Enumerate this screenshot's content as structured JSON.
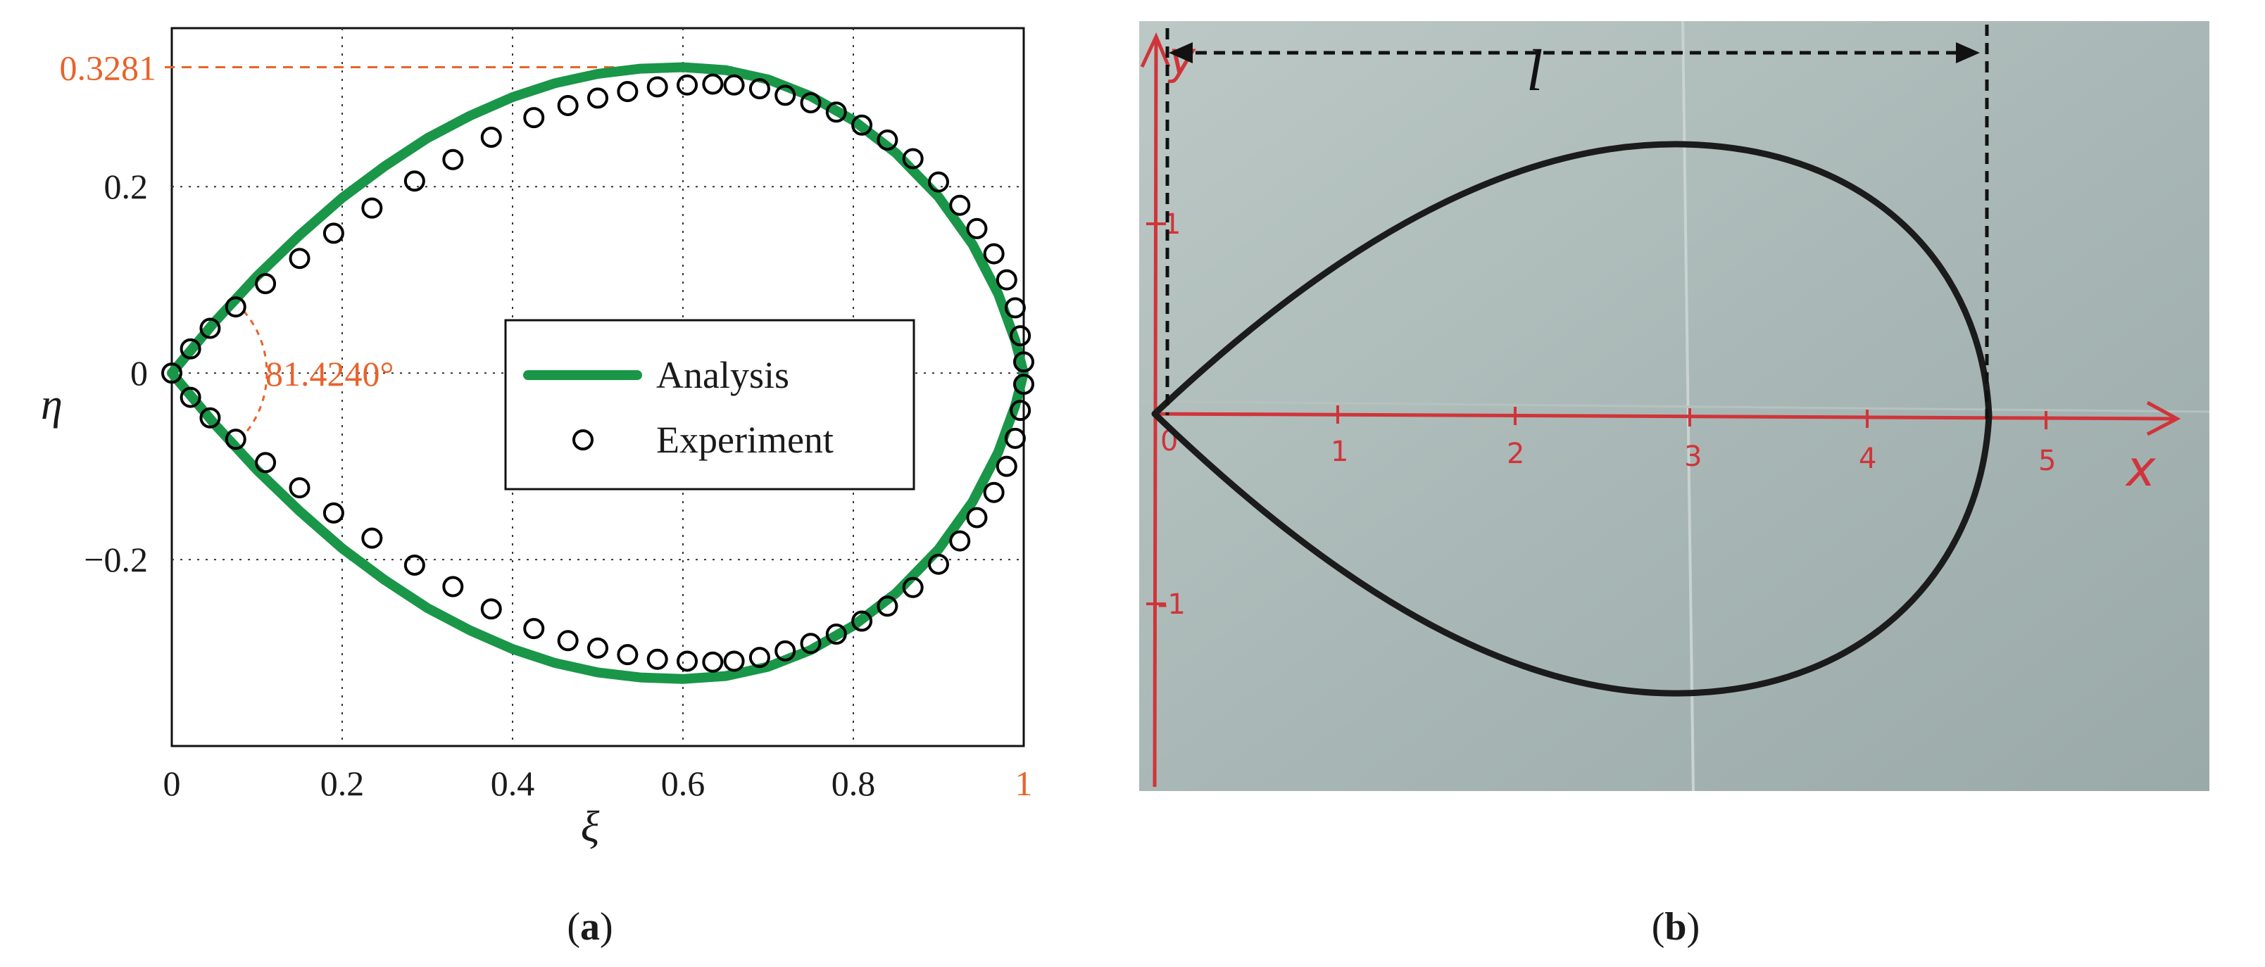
{
  "chart_data": [
    {
      "panel": "a",
      "type": "line",
      "xlabel": "ξ",
      "ylabel": "η",
      "xlim": [
        0,
        1
      ],
      "ylim": [
        -0.4,
        0.37
      ],
      "grid": true,
      "x_ticks": [
        "0",
        "0.2",
        "0.4",
        "0.6",
        "0.8",
        "1"
      ],
      "y_ticks": [
        {
          "v": 0.2,
          "label": "0.2"
        },
        {
          "v": 0,
          "label": "0"
        },
        {
          "v": -0.2,
          "label": "−0.2"
        }
      ],
      "peak_value": 0.3281,
      "peak_label": "0.3281",
      "angle_label": "81.4240°",
      "legend": {
        "position": "center-right",
        "entries": [
          "Analysis",
          "Experiment"
        ]
      },
      "series": [
        {
          "name": "Analysis",
          "style": "line",
          "color": "#1a9648",
          "points": [
            [
              0,
              0
            ],
            [
              0.05,
              0.0545
            ],
            [
              0.1,
              0.104
            ],
            [
              0.15,
              0.148
            ],
            [
              0.2,
              0.188
            ],
            [
              0.25,
              0.222
            ],
            [
              0.3,
              0.252
            ],
            [
              0.35,
              0.276
            ],
            [
              0.4,
              0.296
            ],
            [
              0.45,
              0.311
            ],
            [
              0.5,
              0.321
            ],
            [
              0.55,
              0.3265
            ],
            [
              0.6,
              0.3281
            ],
            [
              0.65,
              0.325
            ],
            [
              0.7,
              0.315
            ],
            [
              0.75,
              0.297
            ],
            [
              0.8,
              0.271
            ],
            [
              0.85,
              0.236
            ],
            [
              0.9,
              0.189
            ],
            [
              0.94,
              0.138
            ],
            [
              0.97,
              0.085
            ],
            [
              0.99,
              0.035
            ],
            [
              1.0,
              0
            ],
            [
              0.99,
              -0.035
            ],
            [
              0.97,
              -0.085
            ],
            [
              0.94,
              -0.138
            ],
            [
              0.9,
              -0.189
            ],
            [
              0.85,
              -0.236
            ],
            [
              0.8,
              -0.271
            ],
            [
              0.75,
              -0.297
            ],
            [
              0.7,
              -0.315
            ],
            [
              0.65,
              -0.325
            ],
            [
              0.6,
              -0.3281
            ],
            [
              0.55,
              -0.3265
            ],
            [
              0.5,
              -0.321
            ],
            [
              0.45,
              -0.311
            ],
            [
              0.4,
              -0.296
            ],
            [
              0.35,
              -0.276
            ],
            [
              0.3,
              -0.252
            ],
            [
              0.25,
              -0.222
            ],
            [
              0.2,
              -0.188
            ],
            [
              0.15,
              -0.148
            ],
            [
              0.1,
              -0.104
            ],
            [
              0.05,
              -0.0545
            ],
            [
              0,
              0
            ]
          ]
        },
        {
          "name": "Experiment",
          "style": "scatter",
          "color": "#000000",
          "points": [
            [
              0,
              0
            ],
            [
              0.022,
              0.026
            ],
            [
              0.045,
              0.048
            ],
            [
              0.075,
              0.071
            ],
            [
              0.11,
              0.096
            ],
            [
              0.15,
              0.123
            ],
            [
              0.19,
              0.15
            ],
            [
              0.235,
              0.177
            ],
            [
              0.285,
              0.206
            ],
            [
              0.33,
              0.229
            ],
            [
              0.375,
              0.253
            ],
            [
              0.425,
              0.274
            ],
            [
              0.465,
              0.287
            ],
            [
              0.5,
              0.295
            ],
            [
              0.535,
              0.302
            ],
            [
              0.57,
              0.307
            ],
            [
              0.605,
              0.309
            ],
            [
              0.635,
              0.31
            ],
            [
              0.66,
              0.309
            ],
            [
              0.69,
              0.305
            ],
            [
              0.72,
              0.298
            ],
            [
              0.75,
              0.29
            ],
            [
              0.78,
              0.28
            ],
            [
              0.81,
              0.266
            ],
            [
              0.84,
              0.25
            ],
            [
              0.87,
              0.23
            ],
            [
              0.9,
              0.205
            ],
            [
              0.925,
              0.18
            ],
            [
              0.945,
              0.155
            ],
            [
              0.965,
              0.128
            ],
            [
              0.98,
              0.1
            ],
            [
              0.99,
              0.07
            ],
            [
              0.996,
              0.04
            ],
            [
              1.0,
              0.012
            ],
            [
              1.0,
              -0.012
            ],
            [
              0.996,
              -0.04
            ],
            [
              0.99,
              -0.07
            ],
            [
              0.98,
              -0.1
            ],
            [
              0.965,
              -0.128
            ],
            [
              0.945,
              -0.155
            ],
            [
              0.925,
              -0.18
            ],
            [
              0.9,
              -0.205
            ],
            [
              0.87,
              -0.23
            ],
            [
              0.84,
              -0.25
            ],
            [
              0.81,
              -0.266
            ],
            [
              0.78,
              -0.28
            ],
            [
              0.75,
              -0.29
            ],
            [
              0.72,
              -0.298
            ],
            [
              0.69,
              -0.305
            ],
            [
              0.66,
              -0.309
            ],
            [
              0.635,
              -0.31
            ],
            [
              0.605,
              -0.309
            ],
            [
              0.57,
              -0.307
            ],
            [
              0.535,
              -0.302
            ],
            [
              0.5,
              -0.295
            ],
            [
              0.465,
              -0.287
            ],
            [
              0.425,
              -0.274
            ],
            [
              0.375,
              -0.253
            ],
            [
              0.33,
              -0.229
            ],
            [
              0.285,
              -0.206
            ],
            [
              0.235,
              -0.177
            ],
            [
              0.19,
              -0.15
            ],
            [
              0.15,
              -0.123
            ],
            [
              0.11,
              -0.096
            ],
            [
              0.075,
              -0.071
            ],
            [
              0.045,
              -0.048
            ],
            [
              0.022,
              -0.026
            ]
          ]
        }
      ]
    }
  ],
  "photo": {
    "length_label": "l",
    "y_label": "y",
    "x_label": "x",
    "x_ticks": [
      "0",
      "1",
      "2",
      "3",
      "4",
      "5"
    ],
    "y_ticks": [
      "1",
      "-1"
    ],
    "colors": {
      "paper": "#a9b8b6",
      "ink": "#d0343a",
      "curve": "#1b1b1b"
    }
  },
  "captions": {
    "a": {
      "open": "(",
      "letter": "a",
      "close": ")"
    },
    "b": {
      "open": "(",
      "letter": "b",
      "close": ")"
    }
  }
}
